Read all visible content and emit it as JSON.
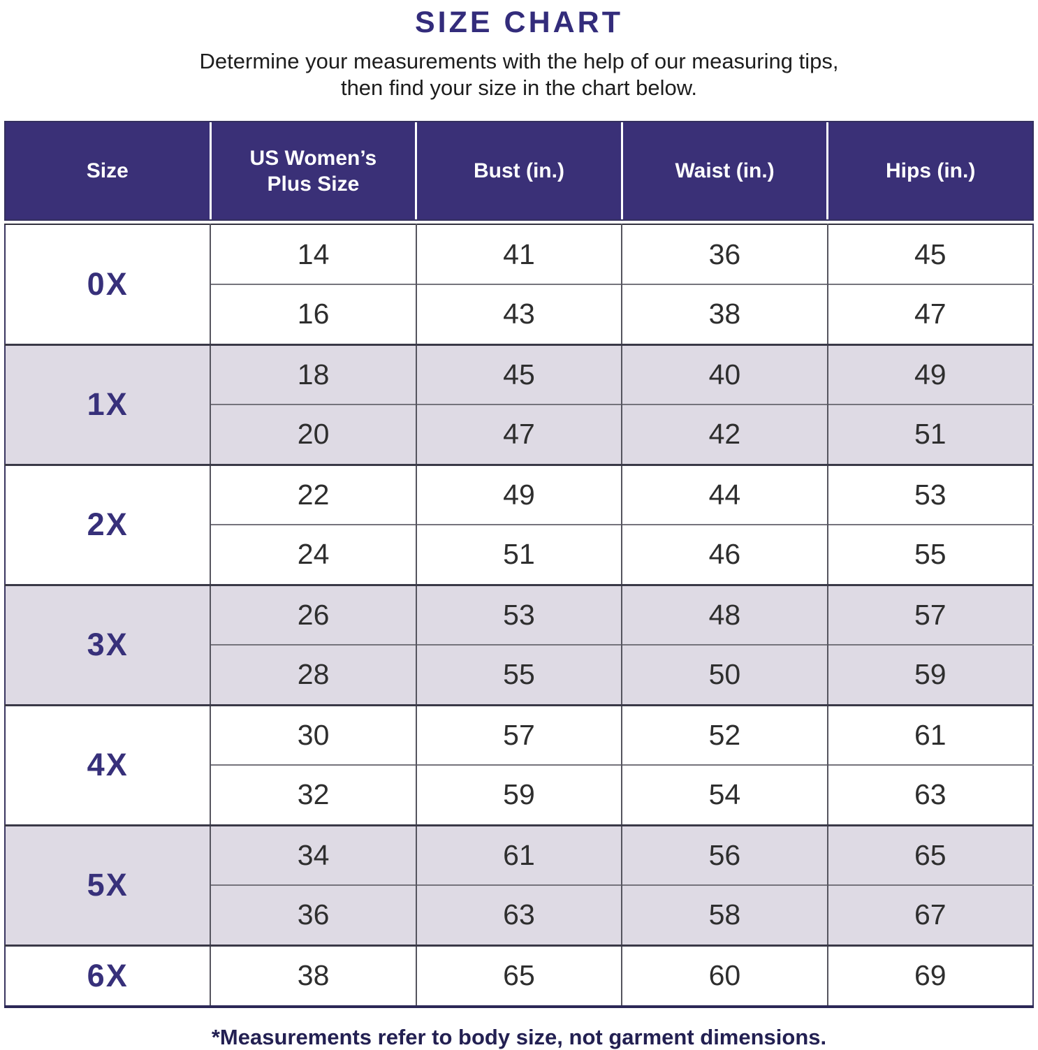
{
  "title": "SIZE CHART",
  "subtitle_line1": "Determine your measurements with the help of our measuring tips,",
  "subtitle_line2": "then find your size in the chart below.",
  "footnote": "*Measurements refer to body size, not garment dimensions.",
  "colors": {
    "header_bg": "#3a3077",
    "header_text": "#ffffff",
    "title_purple": "#332c7b",
    "size_label_purple": "#37307a",
    "alt_row_lavender": "#dedae4",
    "row_white": "#ffffff",
    "body_text": "#2e2e2e",
    "footnote_navy": "#232052"
  },
  "chart_data": {
    "type": "table",
    "title": "SIZE CHART",
    "columns": [
      "Size",
      "US Women’s Plus Size",
      "Bust (in.)",
      "Waist (in.)",
      "Hips (in.)"
    ],
    "groups": [
      {
        "size": "0X",
        "rows": [
          [
            "14",
            "41",
            "36",
            "45"
          ],
          [
            "16",
            "43",
            "38",
            "47"
          ]
        ]
      },
      {
        "size": "1X",
        "rows": [
          [
            "18",
            "45",
            "40",
            "49"
          ],
          [
            "20",
            "47",
            "42",
            "51"
          ]
        ]
      },
      {
        "size": "2X",
        "rows": [
          [
            "22",
            "49",
            "44",
            "53"
          ],
          [
            "24",
            "51",
            "46",
            "55"
          ]
        ]
      },
      {
        "size": "3X",
        "rows": [
          [
            "26",
            "53",
            "48",
            "57"
          ],
          [
            "28",
            "55",
            "50",
            "59"
          ]
        ]
      },
      {
        "size": "4X",
        "rows": [
          [
            "30",
            "57",
            "52",
            "61"
          ],
          [
            "32",
            "59",
            "54",
            "63"
          ]
        ]
      },
      {
        "size": "5X",
        "rows": [
          [
            "34",
            "61",
            "56",
            "65"
          ],
          [
            "36",
            "63",
            "58",
            "67"
          ]
        ]
      },
      {
        "size": "6X",
        "rows": [
          [
            "38",
            "65",
            "60",
            "69"
          ]
        ]
      }
    ]
  }
}
